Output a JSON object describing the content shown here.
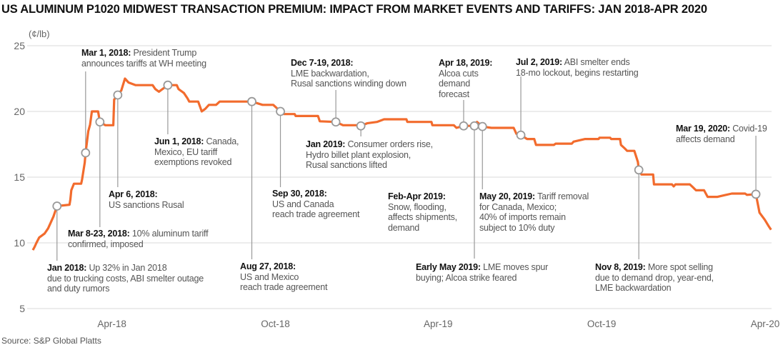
{
  "chart_data": {
    "type": "line",
    "title": "US ALUMINUM P1020 MIDWEST TRANSACTION PREMIUM: IMPACT FROM MARKET EVENTS AND TARIFFS: JAN 2018-APR 2020",
    "ylabel": "(¢/lb)",
    "xlabel": "",
    "ylim": [
      5,
      25
    ],
    "yticks": [
      25,
      20,
      15,
      10,
      5
    ],
    "xticks": [
      {
        "date": "2018-04-01",
        "label": "Apr-18"
      },
      {
        "date": "2018-10-01",
        "label": "Oct-18"
      },
      {
        "date": "2019-04-01",
        "label": "Apr-19"
      },
      {
        "date": "2019-10-01",
        "label": "Oct-19"
      },
      {
        "date": "2020-04-01",
        "label": "Apr-20"
      }
    ],
    "grid": "horizontal",
    "line_color": "#f26b2d",
    "series": [
      {
        "points": [
          [
            "2018-01-01",
            9.45
          ],
          [
            "2018-01-03",
            9.7
          ],
          [
            "2018-01-05",
            10.0
          ],
          [
            "2018-01-08",
            10.4
          ],
          [
            "2018-01-14",
            10.7
          ],
          [
            "2018-01-18",
            11.1
          ],
          [
            "2018-01-24",
            12.0
          ],
          [
            "2018-01-28",
            12.8
          ],
          [
            "2018-02-11",
            12.9
          ],
          [
            "2018-02-12",
            13.3
          ],
          [
            "2018-02-13",
            14.0
          ],
          [
            "2018-02-16",
            14.5
          ],
          [
            "2018-02-24",
            14.5
          ],
          [
            "2018-02-25",
            14.8
          ],
          [
            "2018-02-28",
            16.1
          ],
          [
            "2018-03-01",
            16.85
          ],
          [
            "2018-03-04",
            18.5
          ],
          [
            "2018-03-06",
            19.0
          ],
          [
            "2018-03-08",
            20.0
          ],
          [
            "2018-03-15",
            20.0
          ],
          [
            "2018-03-17",
            19.2
          ],
          [
            "2018-03-23",
            18.95
          ],
          [
            "2018-04-01",
            18.95
          ],
          [
            "2018-04-02",
            20.9
          ],
          [
            "2018-04-06",
            21.25
          ],
          [
            "2018-04-10",
            21.6
          ],
          [
            "2018-04-14",
            22.5
          ],
          [
            "2018-04-18",
            22.2
          ],
          [
            "2018-04-26",
            22.0
          ],
          [
            "2018-05-15",
            22.0
          ],
          [
            "2018-05-18",
            21.7
          ],
          [
            "2018-05-22",
            21.5
          ],
          [
            "2018-06-01",
            22.0
          ],
          [
            "2018-06-11",
            22.0
          ],
          [
            "2018-06-13",
            21.7
          ],
          [
            "2018-06-19",
            21.4
          ],
          [
            "2018-06-23",
            21.0
          ],
          [
            "2018-06-25",
            20.75
          ],
          [
            "2018-07-05",
            20.75
          ],
          [
            "2018-07-09",
            20.0
          ],
          [
            "2018-07-13",
            20.2
          ],
          [
            "2018-07-17",
            20.5
          ],
          [
            "2018-07-25",
            20.5
          ],
          [
            "2018-07-29",
            20.75
          ],
          [
            "2018-09-03",
            20.75
          ],
          [
            "2018-09-15",
            20.5
          ],
          [
            "2018-09-27",
            20.5
          ],
          [
            "2018-10-05",
            20.0
          ],
          [
            "2018-10-09",
            19.8
          ],
          [
            "2018-10-21",
            19.8
          ],
          [
            "2018-10-22",
            19.65
          ],
          [
            "2018-11-16",
            19.65
          ],
          [
            "2018-11-18",
            19.25
          ],
          [
            "2018-12-06",
            19.2
          ],
          [
            "2018-12-14",
            18.95
          ],
          [
            "2018-12-29",
            18.95
          ],
          [
            "2019-01-03",
            18.9
          ],
          [
            "2019-01-10",
            19.1
          ],
          [
            "2019-01-21",
            19.2
          ],
          [
            "2019-01-29",
            19.4
          ],
          [
            "2019-02-23",
            19.4
          ],
          [
            "2019-02-24",
            19.2
          ],
          [
            "2019-03-23",
            19.2
          ],
          [
            "2019-03-24",
            18.95
          ],
          [
            "2019-04-17",
            18.95
          ],
          [
            "2019-04-20",
            18.75
          ],
          [
            "2019-04-28",
            18.9
          ],
          [
            "2019-05-10",
            18.9
          ],
          [
            "2019-05-13",
            19.2
          ],
          [
            "2019-05-19",
            18.85
          ],
          [
            "2019-05-29",
            18.75
          ],
          [
            "2019-06-23",
            18.75
          ],
          [
            "2019-06-26",
            18.3
          ],
          [
            "2019-07-01",
            18.2
          ],
          [
            "2019-07-08",
            17.9
          ],
          [
            "2019-07-16",
            17.9
          ],
          [
            "2019-07-18",
            17.45
          ],
          [
            "2019-08-07",
            17.45
          ],
          [
            "2019-08-09",
            17.55
          ],
          [
            "2019-08-27",
            17.55
          ],
          [
            "2019-08-29",
            17.7
          ],
          [
            "2019-09-11",
            17.9
          ],
          [
            "2019-09-26",
            17.9
          ],
          [
            "2019-09-27",
            18.0
          ],
          [
            "2019-10-09",
            18.0
          ],
          [
            "2019-10-10",
            17.9
          ],
          [
            "2019-10-20",
            17.9
          ],
          [
            "2019-10-21",
            17.45
          ],
          [
            "2019-10-25",
            17.2
          ],
          [
            "2019-10-28",
            17.0
          ],
          [
            "2019-11-05",
            17.0
          ],
          [
            "2019-11-09",
            16.15
          ],
          [
            "2019-11-10",
            15.55
          ],
          [
            "2019-11-13",
            15.2
          ],
          [
            "2019-11-26",
            15.2
          ],
          [
            "2019-11-27",
            14.45
          ],
          [
            "2019-12-17",
            14.45
          ],
          [
            "2019-12-19",
            14.3
          ],
          [
            "2019-12-21",
            14.45
          ],
          [
            "2020-01-06",
            14.45
          ],
          [
            "2020-01-10",
            14.2
          ],
          [
            "2020-01-13",
            14.0
          ],
          [
            "2020-01-22",
            14.0
          ],
          [
            "2020-01-26",
            13.5
          ],
          [
            "2020-02-06",
            13.5
          ],
          [
            "2020-02-09",
            13.55
          ],
          [
            "2020-02-22",
            13.75
          ],
          [
            "2020-03-08",
            13.75
          ],
          [
            "2020-03-10",
            13.65
          ],
          [
            "2020-03-20",
            13.7
          ],
          [
            "2020-03-24",
            12.3
          ],
          [
            "2020-03-30",
            11.75
          ],
          [
            "2020-04-03",
            11.3
          ],
          [
            "2020-04-06",
            11.0
          ]
        ]
      }
    ],
    "annotations": [
      {
        "date": "2018-01-28",
        "value": 12.8,
        "bold": "Jan 2018:",
        "lines": [
          "Up 32% in Jan 2018",
          "due to trucking costs, ABI smelter outage",
          "and duty rumors"
        ]
      },
      {
        "date": "2018-03-01",
        "value": 16.85,
        "bold": "Mar 1, 2018:",
        "lines": [
          "President Trump",
          "announces tariffs at WH meeting"
        ]
      },
      {
        "date": "2018-03-17",
        "value": 19.2,
        "bold": "Mar 8-23, 2018:",
        "lines": [
          "10% aluminum tariff",
          "confirmed, imposed"
        ]
      },
      {
        "date": "2018-04-06",
        "value": 21.25,
        "bold": "Apr 6, 2018:",
        "lines": [
          "",
          "US sanctions Rusal"
        ]
      },
      {
        "date": "2018-06-01",
        "value": 22.0,
        "bold": "Jun 1, 2018:",
        "lines": [
          "Canada,",
          "Mexico,  EU tariff",
          "exemptions revoked"
        ]
      },
      {
        "date": "2018-09-03",
        "value": 20.75,
        "bold": "Aug 27, 2018:",
        "lines": [
          "",
          "US and Mexico",
          "reach trade agreement"
        ]
      },
      {
        "date": "2018-10-05",
        "value": 20.0,
        "bold": "Sep 30, 2018:",
        "lines": [
          "",
          "US and Canada",
          "reach trade agreement"
        ]
      },
      {
        "date": "2018-12-06",
        "value": 19.2,
        "bold": "Dec 7-19, 2018:",
        "lines": [
          "",
          "LME backwardation,",
          "Rusal sanctions winding down"
        ]
      },
      {
        "date": "2019-01-03",
        "value": 18.9,
        "bold": "Jan 2019:",
        "lines": [
          "Consumer orders rise,",
          "Hydro billet plant explosion,",
          "Rusal sanctions lifted"
        ]
      },
      {
        "date": null,
        "value": null,
        "bold": "Feb-Apr 2019:",
        "lines": [
          "",
          "Snow, flooding,",
          "affects shipments,",
          "demand"
        ]
      },
      {
        "date": "2019-04-28",
        "value": 18.9,
        "bold": "Apr 18, 2019:",
        "lines": [
          "",
          "Alcoa cuts",
          "demand",
          "forecast"
        ]
      },
      {
        "date": "2019-05-10",
        "value": 18.9,
        "bold": "Early May 2019:",
        "lines": [
          "LME moves spur",
          "buying; Alcoa strike feared"
        ]
      },
      {
        "date": "2019-05-19",
        "value": 18.85,
        "bold": "May 20, 2019:",
        "lines": [
          "Tariff removal",
          "for Canada, Mexico;",
          "40% of imports remain",
          "subject to 10% duty"
        ]
      },
      {
        "date": "2019-07-01",
        "value": 18.2,
        "bold": "Jul 2, 2019:",
        "lines": [
          "ABI smelter ends",
          "18-mo lockout, begins restarting"
        ]
      },
      {
        "date": "2019-11-10",
        "value": 15.55,
        "bold": "Nov 8, 2019:",
        "lines": [
          "More spot selling",
          "due to demand drop, year-end,",
          "LME backwardation"
        ]
      },
      {
        "date": "2020-03-20",
        "value": 13.7,
        "bold": "Mar 19, 2020:",
        "lines": [
          "Covid-19",
          "affects demand"
        ]
      }
    ],
    "source": "Source: S&P Global Platts"
  }
}
